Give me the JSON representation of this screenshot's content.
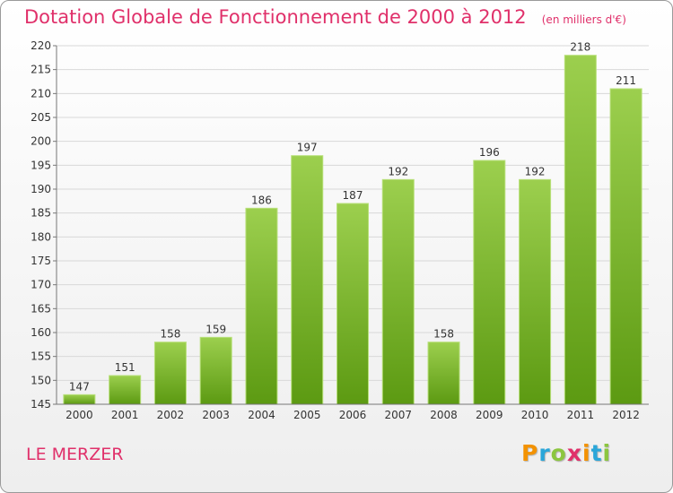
{
  "header": {
    "title": "Dotation Globale de Fonctionnement de 2000 à 2012",
    "subtitle": "(en milliers d'€)"
  },
  "footer": {
    "commune": "LE MERZER",
    "brand": "Proxiti"
  },
  "colors": {
    "title": "#e0306a",
    "bar_top": "#9ccf4e",
    "bar_bottom": "#5c9a12",
    "grid": "#d8d8d8"
  },
  "chart_data": {
    "type": "bar",
    "title": "Dotation Globale de Fonctionnement de 2000 à 2012",
    "subtitle": "(en milliers d'€)",
    "categories": [
      "2000",
      "2001",
      "2002",
      "2003",
      "2004",
      "2005",
      "2006",
      "2007",
      "2008",
      "2009",
      "2010",
      "2011",
      "2012"
    ],
    "values": [
      147,
      151,
      158,
      159,
      186,
      197,
      187,
      192,
      158,
      196,
      192,
      218,
      211
    ],
    "ylim": [
      145,
      220
    ],
    "yticks": [
      145,
      150,
      155,
      160,
      165,
      170,
      175,
      180,
      185,
      190,
      195,
      200,
      205,
      210,
      215,
      220
    ],
    "grid": true,
    "legend": "none"
  }
}
